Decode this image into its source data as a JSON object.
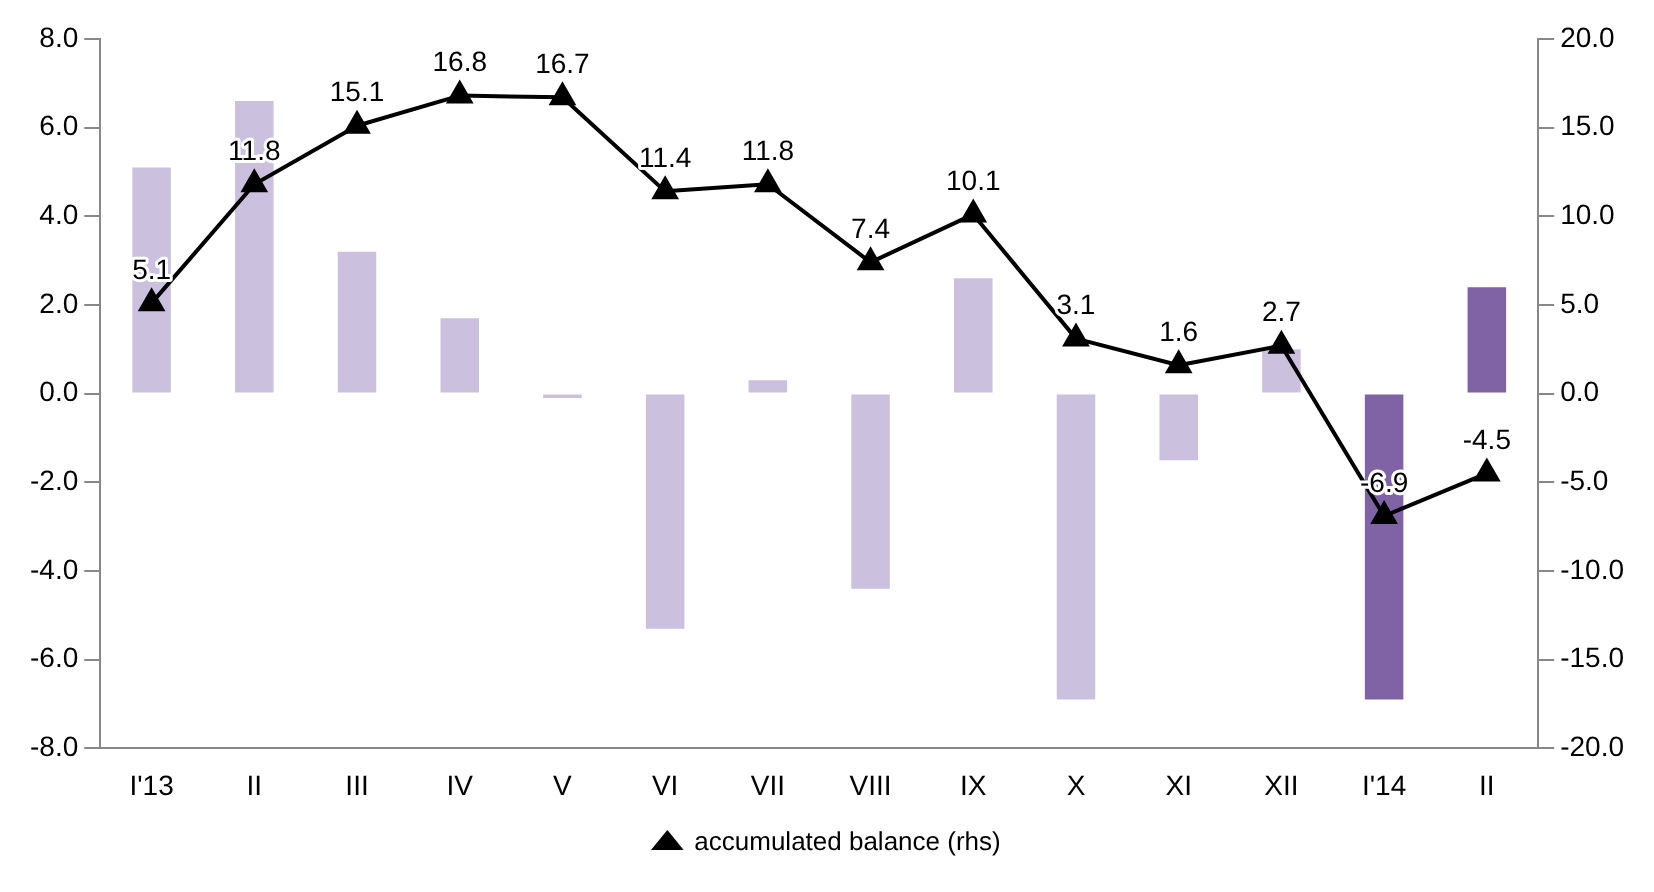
{
  "chart_data": {
    "type": "bar",
    "categories": [
      "I'13",
      "II",
      "III",
      "IV",
      "V",
      "VI",
      "VII",
      "VIII",
      "IX",
      "X",
      "XI",
      "XII",
      "I'14",
      "II"
    ],
    "series": [
      {
        "colors": [
          "#cbc0dd",
          "#cbc0dd",
          "#cbc0dd",
          "#cbc0dd",
          "#cbc0dd",
          "#cbc0dd",
          "#cbc0dd",
          "#cbc0dd",
          "#cbc0dd",
          "#cbc0dd",
          "#cbc0dd",
          "#cbc0dd",
          "#7f63a5",
          "#7f63a5"
        ],
        "values": [
          5.1,
          6.6,
          3.2,
          1.7,
          -0.1,
          -5.3,
          0.3,
          -4.4,
          2.6,
          -6.9,
          -1.5,
          1.0,
          -6.9,
          2.4
        ]
      },
      {
        "type": "line",
        "name": "accumulated balance (rhs)",
        "color": "#000000",
        "axis": "y2",
        "marker": "triangle",
        "values": [
          5.1,
          11.8,
          15.1,
          16.8,
          16.7,
          11.4,
          11.8,
          7.4,
          10.1,
          3.1,
          1.6,
          2.7,
          -6.9,
          -4.5
        ],
        "value_labels": [
          "5.1",
          "11.8",
          "15.1",
          "16.8",
          "16.7",
          "11.4",
          "11.8",
          "7.4",
          "10.1",
          "3.1",
          "1.6",
          "2.7",
          "-6.9",
          "-4.5"
        ]
      }
    ],
    "ylim": [
      -8,
      8
    ],
    "yticks": [
      {
        "value": -8,
        "label": "-8.0"
      },
      {
        "value": -6,
        "label": "-6.0"
      },
      {
        "value": -4,
        "label": "-4.0"
      },
      {
        "value": -2,
        "label": "-2.0"
      },
      {
        "value": 0,
        "label": "0.0"
      },
      {
        "value": 2,
        "label": "2.0"
      },
      {
        "value": 4,
        "label": "4.0"
      },
      {
        "value": 6,
        "label": "6.0"
      },
      {
        "value": 8,
        "label": "8.0"
      }
    ],
    "y2lim": [
      -20,
      20
    ],
    "y2ticks": [
      {
        "value": -20,
        "label": "-20.0"
      },
      {
        "value": -15,
        "label": "-15.0"
      },
      {
        "value": -10,
        "label": "-10.0"
      },
      {
        "value": -5,
        "label": "-5.0"
      },
      {
        "value": 0,
        "label": "0.0"
      },
      {
        "value": 5,
        "label": "5.0"
      },
      {
        "value": 10,
        "label": "10.0"
      },
      {
        "value": 15,
        "label": "15.0"
      },
      {
        "value": 20,
        "label": "20.0"
      }
    ],
    "legend": "bottom",
    "grid": false
  }
}
